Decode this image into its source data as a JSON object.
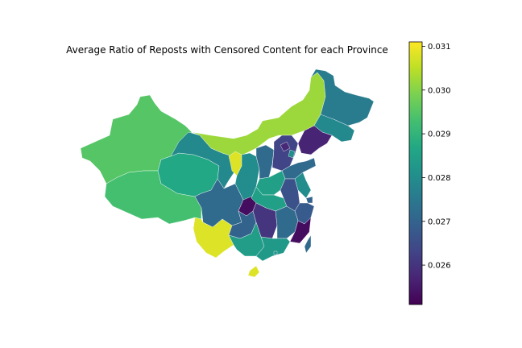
{
  "chart_data": {
    "type": "choropleth",
    "title": "Average Ratio of Reposts with Censored Content for each Province",
    "colormap": "viridis",
    "value_range": [
      0.0251,
      0.0311
    ],
    "colorbar_ticks": [
      "0.026",
      "0.027",
      "0.028",
      "0.029",
      "0.030",
      "0.031"
    ],
    "colorbar_tick_values": [
      0.026,
      0.027,
      0.028,
      0.029,
      0.03,
      0.031
    ],
    "regions": [
      {
        "name": "Xinjiang",
        "value": 0.0295
      },
      {
        "name": "Tibet",
        "value": 0.0293
      },
      {
        "name": "Qinghai",
        "value": 0.0287
      },
      {
        "name": "Gansu",
        "value": 0.0279
      },
      {
        "name": "Inner Mongolia",
        "value": 0.0302
      },
      {
        "name": "Heilongjiang",
        "value": 0.0276
      },
      {
        "name": "Jilin",
        "value": 0.0279
      },
      {
        "name": "Liaoning",
        "value": 0.0257
      },
      {
        "name": "Ningxia",
        "value": 0.0308
      },
      {
        "name": "Shaanxi",
        "value": 0.028
      },
      {
        "name": "Shanxi",
        "value": 0.0272
      },
      {
        "name": "Hebei",
        "value": 0.0263
      },
      {
        "name": "Beijing",
        "value": 0.0258
      },
      {
        "name": "Tianjin",
        "value": 0.028
      },
      {
        "name": "Shandong",
        "value": 0.0272
      },
      {
        "name": "Henan",
        "value": 0.0285
      },
      {
        "name": "Sichuan",
        "value": 0.0272
      },
      {
        "name": "Chongqing",
        "value": 0.0253
      },
      {
        "name": "Hubei",
        "value": 0.0285
      },
      {
        "name": "Anhui",
        "value": 0.0266
      },
      {
        "name": "Jiangsu",
        "value": 0.028
      },
      {
        "name": "Shanghai",
        "value": 0.027
      },
      {
        "name": "Zhejiang",
        "value": 0.0268
      },
      {
        "name": "Yunnan",
        "value": 0.0308
      },
      {
        "name": "Guizhou",
        "value": 0.027
      },
      {
        "name": "Hunan",
        "value": 0.026
      },
      {
        "name": "Jiangxi",
        "value": 0.0272
      },
      {
        "name": "Fujian",
        "value": 0.0253
      },
      {
        "name": "Guangxi",
        "value": 0.0284
      },
      {
        "name": "Guangdong",
        "value": 0.0283
      },
      {
        "name": "Hainan",
        "value": 0.0308
      },
      {
        "name": "Taiwan",
        "value": 0.0272
      },
      {
        "name": "Hong Kong",
        "value": 0.028
      }
    ]
  }
}
